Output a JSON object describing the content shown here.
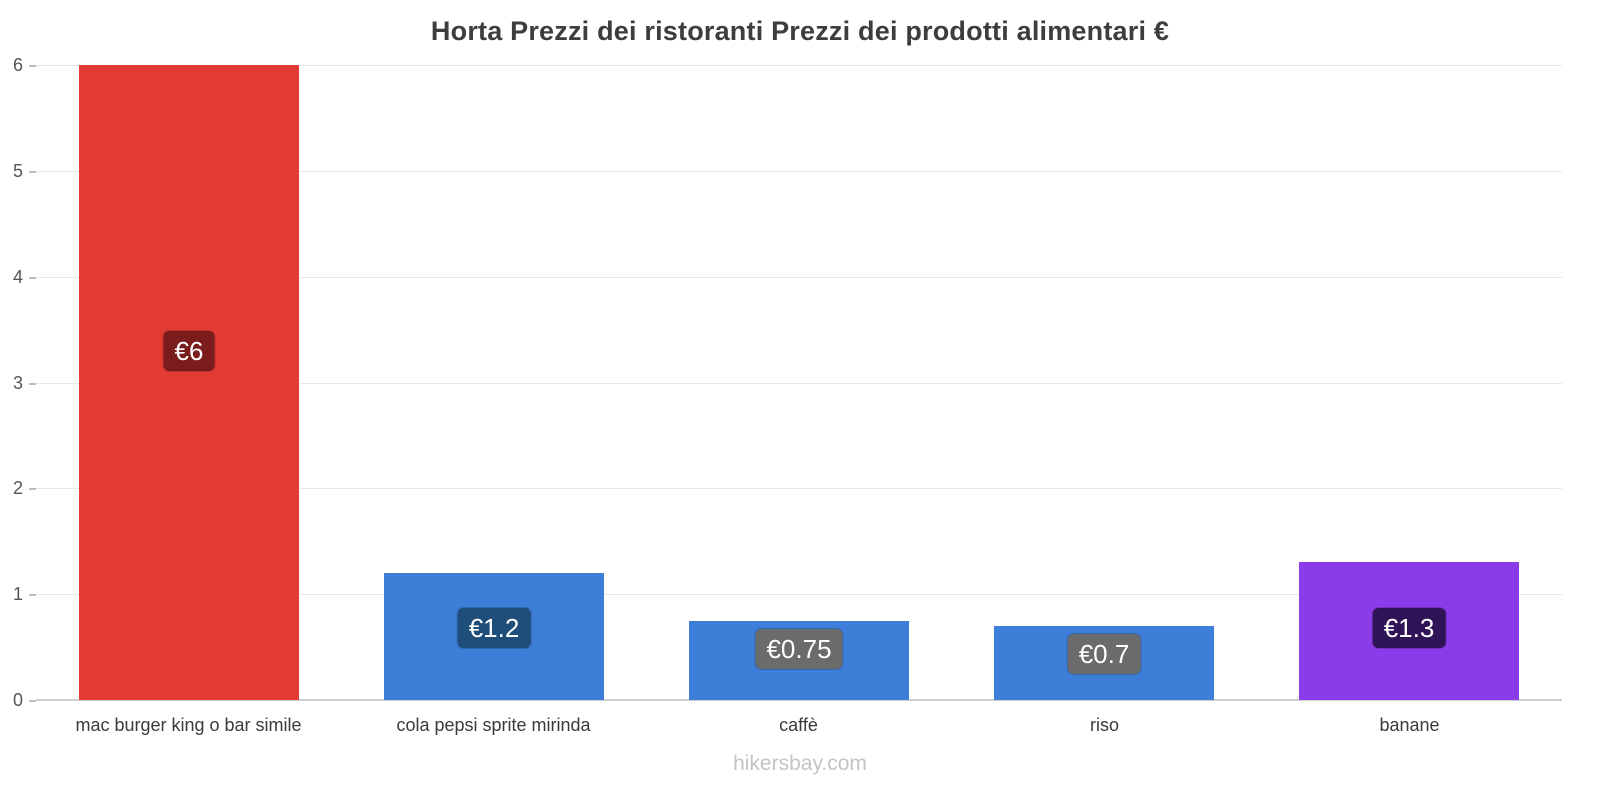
{
  "title": "Horta Prezzi dei ristoranti Prezzi dei prodotti alimentari €",
  "footer": "hikersbay.com",
  "chart_data": {
    "type": "bar",
    "title": "Horta Prezzi dei ristoranti Prezzi dei prodotti alimentari €",
    "categories": [
      "mac burger king o bar simile",
      "cola pepsi sprite mirinda",
      "caffè",
      "riso",
      "banane"
    ],
    "values": [
      6,
      1.2,
      0.75,
      0.7,
      1.3
    ],
    "value_labels": [
      "€6",
      "€1.2",
      "€0.75",
      "€0.7",
      "€1.3"
    ],
    "bar_colors": [
      "#e13b34",
      "#3d7ed8",
      "#3d7ed8",
      "#3d7ed8",
      "#8a3ce8"
    ],
    "label_bg_colors": [
      "#7a1c1c",
      "#1f4e7a",
      "#6b6b6b",
      "#6b6b6b",
      "#301458"
    ],
    "xlabel": "",
    "ylabel": "",
    "ylim": [
      0,
      6
    ],
    "yticks": [
      0,
      1,
      2,
      3,
      4,
      5,
      6
    ],
    "grid": "horizontal",
    "legend": "none",
    "currency": "€"
  }
}
